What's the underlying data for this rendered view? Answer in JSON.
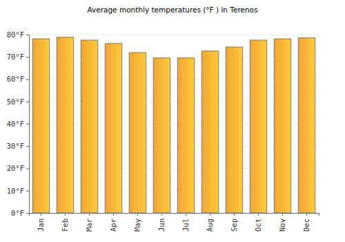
{
  "chart_data": {
    "type": "bar",
    "title": "Average monthly temperatures (°F ) in Terenos",
    "categories": [
      "Jan",
      "Feb",
      "Mar",
      "Apr",
      "May",
      "Jun",
      "Jul",
      "Aug",
      "Sep",
      "Oct",
      "Nov",
      "Dec"
    ],
    "values": [
      78.1,
      78.8,
      77.5,
      76.0,
      71.9,
      69.5,
      69.5,
      72.6,
      74.4,
      77.5,
      78.1,
      78.5
    ],
    "color": "#ffae38",
    "ylim": [
      0,
      80
    ],
    "yticks": [
      {
        "value": 0,
        "label": "0°F"
      },
      {
        "value": 10,
        "label": "10°F"
      },
      {
        "value": 20,
        "label": "20°F"
      },
      {
        "value": 30,
        "label": "30°F"
      },
      {
        "value": 40,
        "label": "40°F"
      },
      {
        "value": 50,
        "label": "50°F"
      },
      {
        "value": 60,
        "label": "60°F"
      },
      {
        "value": 70,
        "label": "70°F"
      },
      {
        "value": 80,
        "label": "80°F"
      }
    ],
    "grid": true
  }
}
